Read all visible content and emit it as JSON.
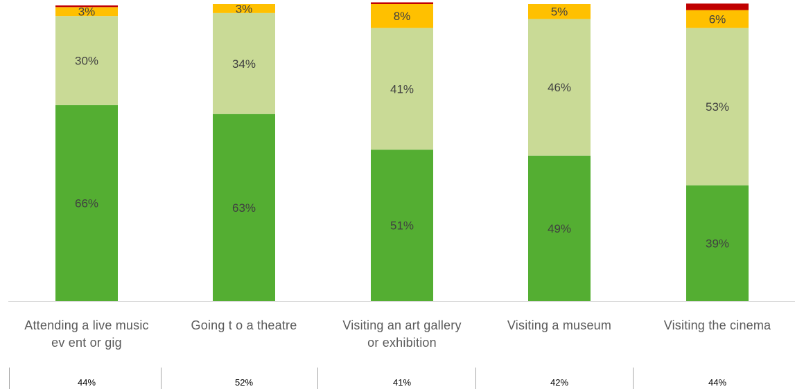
{
  "chart_data": {
    "type": "bar",
    "stacked": true,
    "categories": [
      "Attending a live music event or gig",
      "Going to a theatre",
      "Visiting an art gallery or exhibition",
      "Visiting a museum",
      "Visiting the cinema"
    ],
    "category_lines": [
      [
        "Attending a live music",
        "ev ent or gig"
      ],
      [
        "Going t o a theatre"
      ],
      [
        "Visiting an art gallery",
        "or exhibition"
      ],
      [
        "Visiting a museum"
      ],
      [
        "Visiting the cinema"
      ]
    ],
    "series": [
      {
        "values": [
          66,
          63,
          51,
          49,
          39
        ],
        "color": "#54ae32",
        "labels": [
          "66%",
          "63%",
          "51%",
          "49%",
          "39%"
        ]
      },
      {
        "values": [
          30,
          34,
          41,
          46,
          53
        ],
        "color": "#c9da96",
        "labels": [
          "30%",
          "34%",
          "41%",
          "46%",
          "53%"
        ]
      },
      {
        "values": [
          3,
          3,
          8,
          5,
          6
        ],
        "color": "#ffc000",
        "labels": [
          "3%",
          "3%",
          "8%",
          "5%",
          "6%"
        ]
      },
      {
        "values": [
          0.6,
          0,
          0.6,
          0,
          2.2
        ],
        "color": "#c00000",
        "labels": [
          "",
          "",
          "",
          "",
          ""
        ]
      }
    ],
    "ylim": [
      0,
      100
    ],
    "footer_values": [
      "44%",
      "52%",
      "41%",
      "42%",
      "44%"
    ]
  }
}
